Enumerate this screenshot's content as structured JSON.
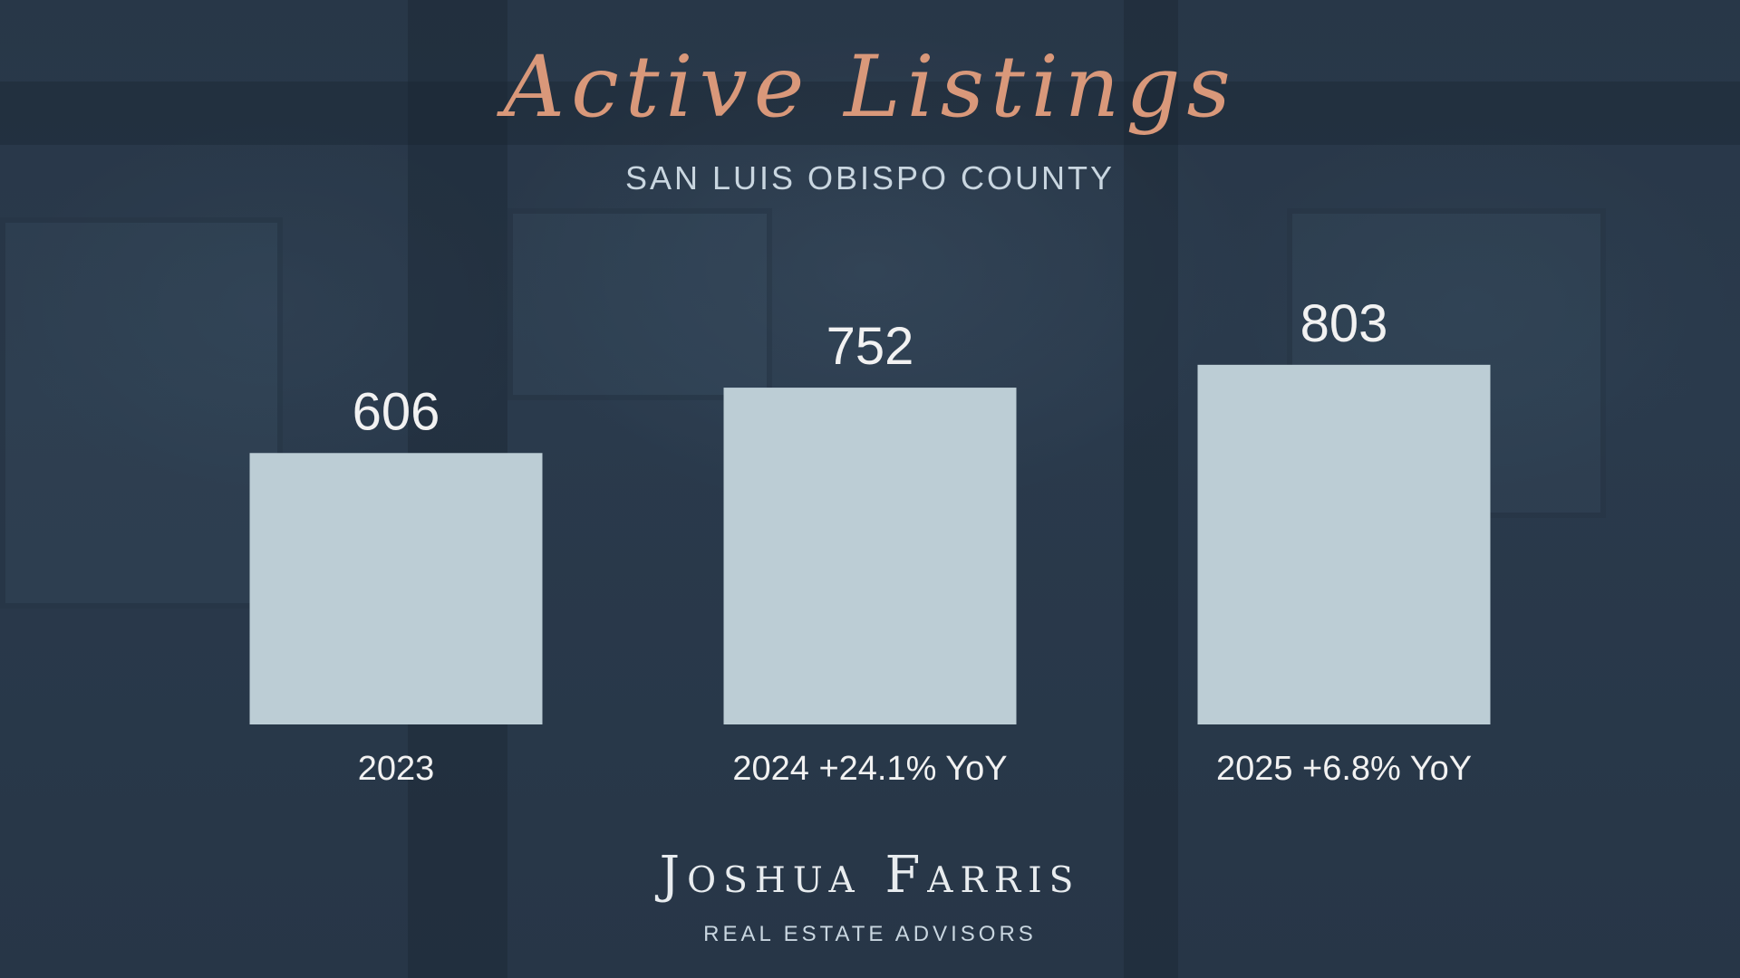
{
  "header": {
    "title": "Active Listings",
    "subtitle": "SAN LUIS OBISPO COUNTY"
  },
  "brand": {
    "name": "Joshua Farris",
    "tagline": "REAL ESTATE ADVISORS"
  },
  "colors": {
    "background": "#2a3a4c",
    "bar": "#bccdd5",
    "title": "#d9987a",
    "text": "#f2f2f2"
  },
  "chart_data": {
    "type": "bar",
    "title": "Active Listings",
    "subtitle": "SAN LUIS OBISPO COUNTY",
    "categories": [
      "2023",
      "2024 +24.1% YoY",
      "2025 +6.8% YoY"
    ],
    "values": [
      606,
      752,
      803
    ],
    "data_labels": [
      "606",
      "752",
      "803"
    ],
    "xlabel": "",
    "ylabel": "",
    "grid": false,
    "legend": "none"
  }
}
